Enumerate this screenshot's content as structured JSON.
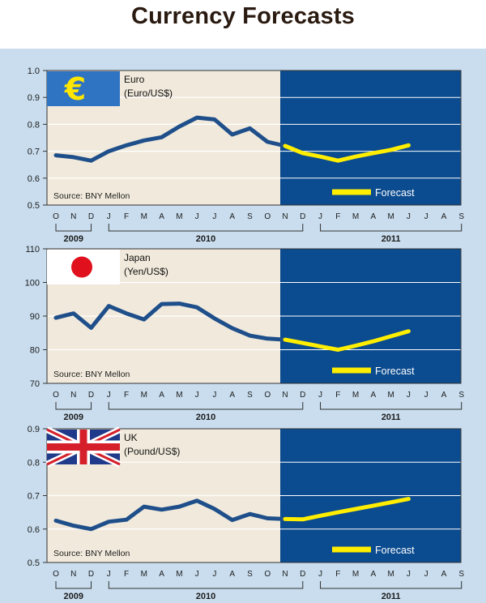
{
  "page": {
    "title": "Currency Forecasts"
  },
  "colors": {
    "background": "#c9ddee",
    "history_area": "#f1eadc",
    "forecast_area": "#0b4b8f",
    "history_line": "#1f4f8a",
    "forecast_line": "#ffee00"
  },
  "chart_data": [
    {
      "type": "line",
      "title": "Euro",
      "subtitle": "(Euro/US$)",
      "flag": "euro-symbol-icon",
      "source": "Source: BNY Mellon",
      "legend": "Forecast",
      "ylim": [
        0.5,
        1.0
      ],
      "yticks": [
        "0.5",
        "0.6",
        "0.7",
        "0.8",
        "0.9",
        "1.0"
      ],
      "ytick_values": [
        0.5,
        0.6,
        0.7,
        0.8,
        0.9,
        1.0
      ],
      "month_labels": [
        "O",
        "N",
        "D",
        "J",
        "F",
        "M",
        "A",
        "M",
        "J",
        "J",
        "A",
        "S",
        "O",
        "N",
        "D",
        "J",
        "F",
        "M",
        "A",
        "M",
        "J",
        "J",
        "A",
        "S"
      ],
      "years": [
        "2009",
        "2010",
        "2011"
      ],
      "series": [
        {
          "values": [
            0.685,
            0.678,
            0.665,
            0.7,
            0.722,
            0.74,
            0.752,
            0.792,
            0.825,
            0.818,
            0.762,
            0.785,
            0.735,
            0.72
          ]
        },
        {
          "start_index": 13,
          "values": [
            0.72,
            0.693,
            0.68,
            0.665,
            0.68,
            0.693,
            0.705,
            0.722
          ]
        }
      ]
    },
    {
      "type": "line",
      "title": "Japan",
      "subtitle": "(Yen/US$)",
      "flag": "japan-flag-icon",
      "source": "Source: BNY Mellon",
      "legend": "Forecast",
      "ylim": [
        70,
        110
      ],
      "yticks": [
        "70",
        "80",
        "90",
        "100",
        "110"
      ],
      "ytick_values": [
        70,
        80,
        90,
        100,
        110
      ],
      "month_labels": [
        "O",
        "N",
        "D",
        "J",
        "F",
        "M",
        "A",
        "M",
        "J",
        "J",
        "A",
        "S",
        "O",
        "N",
        "D",
        "J",
        "F",
        "M",
        "A",
        "M",
        "J",
        "J",
        "A",
        "S"
      ],
      "years": [
        "2009",
        "2010",
        "2011"
      ],
      "series": [
        {
          "values": [
            89.5,
            90.8,
            86.5,
            93.0,
            90.8,
            89.0,
            93.6,
            93.7,
            92.6,
            89.3,
            86.4,
            84.2,
            83.3,
            83.0
          ]
        },
        {
          "start_index": 13,
          "values": [
            83.0,
            82.0,
            81.0,
            80.0,
            81.2,
            82.5,
            84.0,
            85.5
          ]
        }
      ]
    },
    {
      "type": "line",
      "title": "UK",
      "subtitle": "(Pound/US$)",
      "flag": "uk-flag-icon",
      "source": "Source: BNY Mellon",
      "legend": "Forecast",
      "ylim": [
        0.5,
        0.9
      ],
      "yticks": [
        "0.5",
        "0.6",
        "0.7",
        "0.8",
        "0.9"
      ],
      "ytick_values": [
        0.5,
        0.6,
        0.7,
        0.8,
        0.9
      ],
      "month_labels": [
        "O",
        "N",
        "D",
        "J",
        "F",
        "M",
        "A",
        "M",
        "J",
        "J",
        "A",
        "S",
        "O",
        "N",
        "D",
        "J",
        "F",
        "M",
        "A",
        "M",
        "J",
        "J",
        "A",
        "S"
      ],
      "years": [
        "2009",
        "2010",
        "2011"
      ],
      "series": [
        {
          "values": [
            0.625,
            0.61,
            0.6,
            0.622,
            0.628,
            0.667,
            0.658,
            0.667,
            0.685,
            0.66,
            0.627,
            0.645,
            0.632,
            0.63
          ]
        },
        {
          "start_index": 13,
          "values": [
            0.63,
            0.629,
            0.64,
            0.65,
            0.66,
            0.67,
            0.68,
            0.69
          ]
        }
      ]
    }
  ]
}
